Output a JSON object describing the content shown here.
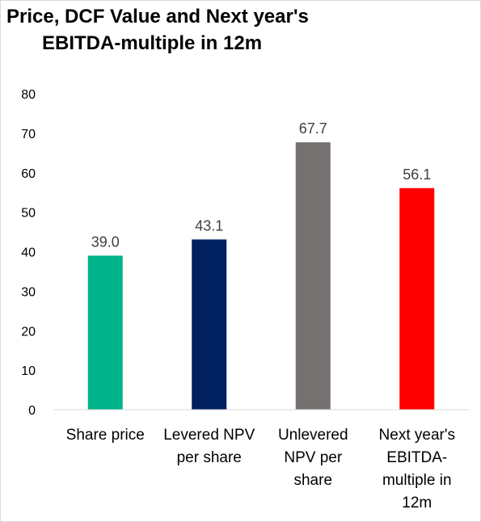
{
  "title": {
    "line1": "Price, DCF Value and Next year's",
    "line2": "EBITDA-multiple in 12m"
  },
  "chart_data": {
    "type": "bar",
    "title": "Price, DCF Value and Next year's EBITDA-multiple in 12m",
    "categories": [
      [
        "Share price"
      ],
      [
        "Levered NPV",
        "per share"
      ],
      [
        "Unlevered",
        "NPV per",
        "share"
      ],
      [
        "Next year's",
        "EBITDA-",
        "multiple in",
        "12m"
      ]
    ],
    "values": [
      39.0,
      43.1,
      67.7,
      56.1
    ],
    "value_labels": [
      "39.0",
      "43.1",
      "67.7",
      "56.1"
    ],
    "colors": [
      "#00b38a",
      "#002060",
      "#767171",
      "#ff0000"
    ],
    "ylim": [
      0,
      80
    ],
    "yticks": [
      0,
      10,
      20,
      30,
      40,
      50,
      60,
      70,
      80
    ],
    "xlabel": "",
    "ylabel": "",
    "grid": false,
    "legend": "none"
  }
}
